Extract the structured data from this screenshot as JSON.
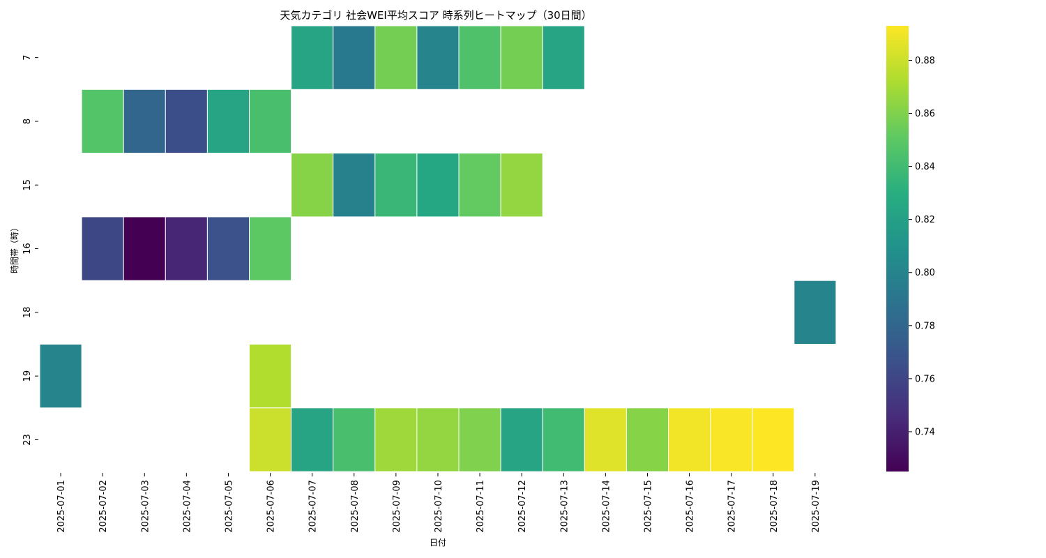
{
  "chart_data": {
    "type": "heatmap",
    "title": "天気カテゴリ 社会WEI平均スコア 時系列ヒートマップ（30日間）",
    "xlabel": "日付",
    "ylabel": "時間帯（時）",
    "x": [
      "2025-07-01",
      "2025-07-02",
      "2025-07-03",
      "2025-07-04",
      "2025-07-05",
      "2025-07-06",
      "2025-07-07",
      "2025-07-08",
      "2025-07-09",
      "2025-07-10",
      "2025-07-11",
      "2025-07-12",
      "2025-07-13",
      "2025-07-14",
      "2025-07-15",
      "2025-07-16",
      "2025-07-17",
      "2025-07-18",
      "2025-07-19"
    ],
    "y": [
      "7",
      "8",
      "15",
      "16",
      "18",
      "19",
      "23"
    ],
    "values": [
      [
        null,
        null,
        null,
        null,
        null,
        null,
        0.823,
        0.793,
        0.857,
        0.8,
        0.845,
        0.857,
        0.823,
        null,
        null,
        null,
        null,
        null,
        null
      ],
      [
        null,
        0.847,
        0.78,
        0.765,
        0.823,
        0.843,
        null,
        null,
        null,
        null,
        null,
        null,
        null,
        null,
        null,
        null,
        null,
        null,
        null
      ],
      [
        null,
        null,
        null,
        null,
        null,
        null,
        0.862,
        0.798,
        0.837,
        0.825,
        0.852,
        0.865,
        null,
        null,
        null,
        null,
        null,
        null,
        null
      ],
      [
        null,
        0.761,
        0.725,
        0.743,
        0.767,
        0.85,
        null,
        null,
        null,
        null,
        null,
        null,
        null,
        null,
        null,
        null,
        null,
        null,
        null
      ],
      [
        null,
        null,
        null,
        null,
        null,
        null,
        null,
        null,
        null,
        null,
        null,
        null,
        null,
        null,
        null,
        null,
        null,
        null,
        0.8
      ],
      [
        0.8,
        null,
        null,
        null,
        null,
        0.873,
        null,
        null,
        null,
        null,
        null,
        null,
        null,
        null,
        null,
        null,
        null,
        null,
        null
      ],
      [
        null,
        null,
        null,
        null,
        null,
        0.88,
        0.823,
        0.843,
        0.868,
        0.865,
        0.86,
        0.823,
        0.84,
        0.885,
        0.862,
        0.89,
        0.892,
        0.893,
        null
      ]
    ],
    "colorbar": {
      "min": 0.725,
      "max": 0.893,
      "ticks": [
        "0.74",
        "0.76",
        "0.78",
        "0.80",
        "0.82",
        "0.84",
        "0.86",
        "0.88"
      ],
      "colormap": "viridis"
    },
    "grid": false
  }
}
